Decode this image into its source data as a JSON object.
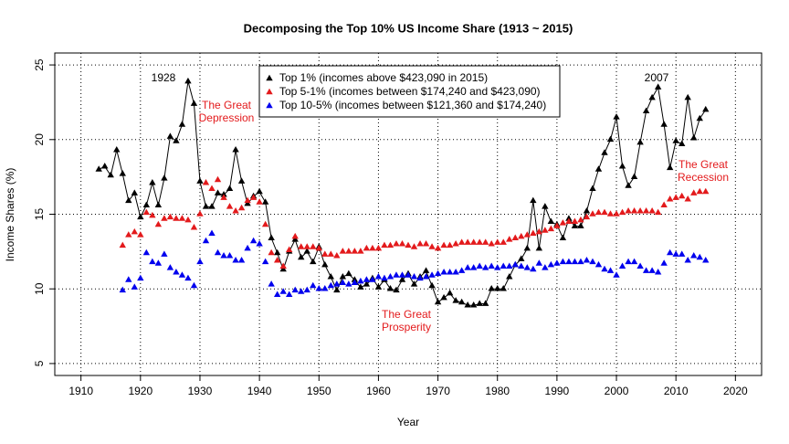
{
  "chart_data": {
    "type": "line",
    "title": "Decomposing the Top 10% US Income Share (1913 ~ 2015)",
    "x_label": "Year",
    "y_label": "Income Shares (%)",
    "x": [
      1913,
      1914,
      1915,
      1916,
      1917,
      1918,
      1919,
      1920,
      1921,
      1922,
      1923,
      1924,
      1925,
      1926,
      1927,
      1928,
      1929,
      1930,
      1931,
      1932,
      1933,
      1934,
      1935,
      1936,
      1937,
      1938,
      1939,
      1940,
      1941,
      1942,
      1943,
      1944,
      1945,
      1946,
      1947,
      1948,
      1949,
      1950,
      1951,
      1952,
      1953,
      1954,
      1955,
      1956,
      1957,
      1958,
      1959,
      1960,
      1961,
      1962,
      1963,
      1964,
      1965,
      1966,
      1967,
      1968,
      1969,
      1970,
      1971,
      1972,
      1973,
      1974,
      1975,
      1976,
      1977,
      1978,
      1979,
      1980,
      1981,
      1982,
      1983,
      1984,
      1985,
      1986,
      1987,
      1988,
      1989,
      1990,
      1991,
      1992,
      1993,
      1994,
      1995,
      1996,
      1997,
      1998,
      1999,
      2000,
      2001,
      2002,
      2003,
      2004,
      2005,
      2006,
      2007,
      2008,
      2009,
      2010,
      2011,
      2012,
      2013,
      2014,
      2015
    ],
    "series": [
      {
        "name": "Top 1% (incomes above $423,090 in 2015)",
        "color": "#000000",
        "line": true,
        "values": [
          18.0,
          18.2,
          17.6,
          19.3,
          17.7,
          15.9,
          16.4,
          14.8,
          15.6,
          17.1,
          15.6,
          17.4,
          20.2,
          19.9,
          21.0,
          23.9,
          22.4,
          17.2,
          15.5,
          15.5,
          16.4,
          16.3,
          16.7,
          19.3,
          17.2,
          15.7,
          16.2,
          16.5,
          15.8,
          13.4,
          12.4,
          11.3,
          12.5,
          13.3,
          12.1,
          12.5,
          11.8,
          12.8,
          11.6,
          10.8,
          9.9,
          10.8,
          11.0,
          10.6,
          10.1,
          10.3,
          10.7,
          10.1,
          10.6,
          10.0,
          9.9,
          10.6,
          11.0,
          10.3,
          10.8,
          11.2,
          10.2,
          9.1,
          9.4,
          9.7,
          9.2,
          9.1,
          8.9,
          8.9,
          9.0,
          9.0,
          10.0,
          10.0,
          10.0,
          10.8,
          11.6,
          12.0,
          12.7,
          15.9,
          12.7,
          15.5,
          14.5,
          14.3,
          13.4,
          14.7,
          14.2,
          14.2,
          15.2,
          16.7,
          18.0,
          19.1,
          20.0,
          21.5,
          18.2,
          16.9,
          17.5,
          19.8,
          21.9,
          22.8,
          23.5,
          21.0,
          18.1,
          19.9,
          19.7,
          22.8,
          20.1,
          21.4,
          22.0
        ]
      },
      {
        "name": "Top 5-1% (incomes between $174,240 and $423,090)",
        "color": "#e31a1c",
        "line": false,
        "values": [
          null,
          null,
          null,
          null,
          12.9,
          13.6,
          13.8,
          13.6,
          15.1,
          14.9,
          14.3,
          14.7,
          14.8,
          14.7,
          14.7,
          14.6,
          14.1,
          15.0,
          17.1,
          16.7,
          17.3,
          16.1,
          15.5,
          15.2,
          15.4,
          15.9,
          16.1,
          15.8,
          14.3,
          12.4,
          11.9,
          11.5,
          12.6,
          13.5,
          12.8,
          12.8,
          12.8,
          12.7,
          12.3,
          12.3,
          12.2,
          12.5,
          12.5,
          12.5,
          12.5,
          12.7,
          12.7,
          12.7,
          12.9,
          12.9,
          13.0,
          13.0,
          12.9,
          12.8,
          13.0,
          13.0,
          12.8,
          12.7,
          12.9,
          12.9,
          13.0,
          13.1,
          13.1,
          13.1,
          13.1,
          13.1,
          13.0,
          13.1,
          13.1,
          13.3,
          13.4,
          13.5,
          13.6,
          13.7,
          13.8,
          13.9,
          14.0,
          14.2,
          14.4,
          14.5,
          14.5,
          14.6,
          14.8,
          15.0,
          15.1,
          15.1,
          15.0,
          15.0,
          15.1,
          15.2,
          15.2,
          15.2,
          15.2,
          15.2,
          15.1,
          15.6,
          16.0,
          16.1,
          16.2,
          16.0,
          16.4,
          16.5,
          16.5
        ]
      },
      {
        "name": "Top 10-5% (incomes between $121,360 and $174,240)",
        "color": "#0000ee",
        "line": false,
        "values": [
          null,
          null,
          null,
          null,
          9.9,
          10.6,
          10.1,
          10.7,
          12.4,
          11.8,
          11.7,
          12.3,
          11.4,
          11.1,
          10.9,
          10.7,
          10.2,
          11.8,
          13.2,
          13.7,
          12.4,
          12.2,
          12.2,
          11.9,
          11.9,
          12.7,
          13.2,
          13.0,
          11.8,
          10.3,
          9.6,
          9.8,
          9.6,
          9.9,
          9.8,
          9.9,
          10.2,
          10.0,
          10.0,
          10.2,
          10.3,
          10.4,
          10.3,
          10.4,
          10.5,
          10.6,
          10.6,
          10.8,
          10.7,
          10.8,
          10.9,
          10.9,
          10.9,
          10.8,
          10.7,
          10.8,
          10.9,
          11.0,
          11.1,
          11.1,
          11.1,
          11.2,
          11.4,
          11.4,
          11.5,
          11.4,
          11.5,
          11.4,
          11.5,
          11.5,
          11.6,
          11.5,
          11.4,
          11.3,
          11.7,
          11.4,
          11.6,
          11.7,
          11.8,
          11.8,
          11.8,
          11.8,
          11.9,
          11.8,
          11.6,
          11.3,
          11.2,
          10.9,
          11.5,
          11.8,
          11.8,
          11.5,
          11.2,
          11.2,
          11.1,
          11.7,
          12.4,
          12.3,
          12.3,
          11.9,
          12.2,
          12.1,
          11.9
        ]
      }
    ],
    "annotations": [
      {
        "lines": [
          "1928"
        ],
        "color": "#000000"
      },
      {
        "lines": [
          "The Great",
          "Depression"
        ],
        "color": "#e31a1c"
      },
      {
        "lines": [
          "The Great",
          "Prosperity"
        ],
        "color": "#e31a1c"
      },
      {
        "lines": [
          "2007"
        ],
        "color": "#000000"
      },
      {
        "lines": [
          "The Great",
          "Recession"
        ],
        "color": "#e31a1c"
      }
    ],
    "xlim": [
      1905.6,
      2024.4
    ],
    "ylim": [
      4.2,
      25.8
    ],
    "xticks": [
      1910,
      1920,
      1930,
      1940,
      1950,
      1960,
      1970,
      1980,
      1990,
      2000,
      2010,
      2020
    ],
    "yticks": [
      5,
      10,
      15,
      20,
      25
    ],
    "grid": true
  }
}
